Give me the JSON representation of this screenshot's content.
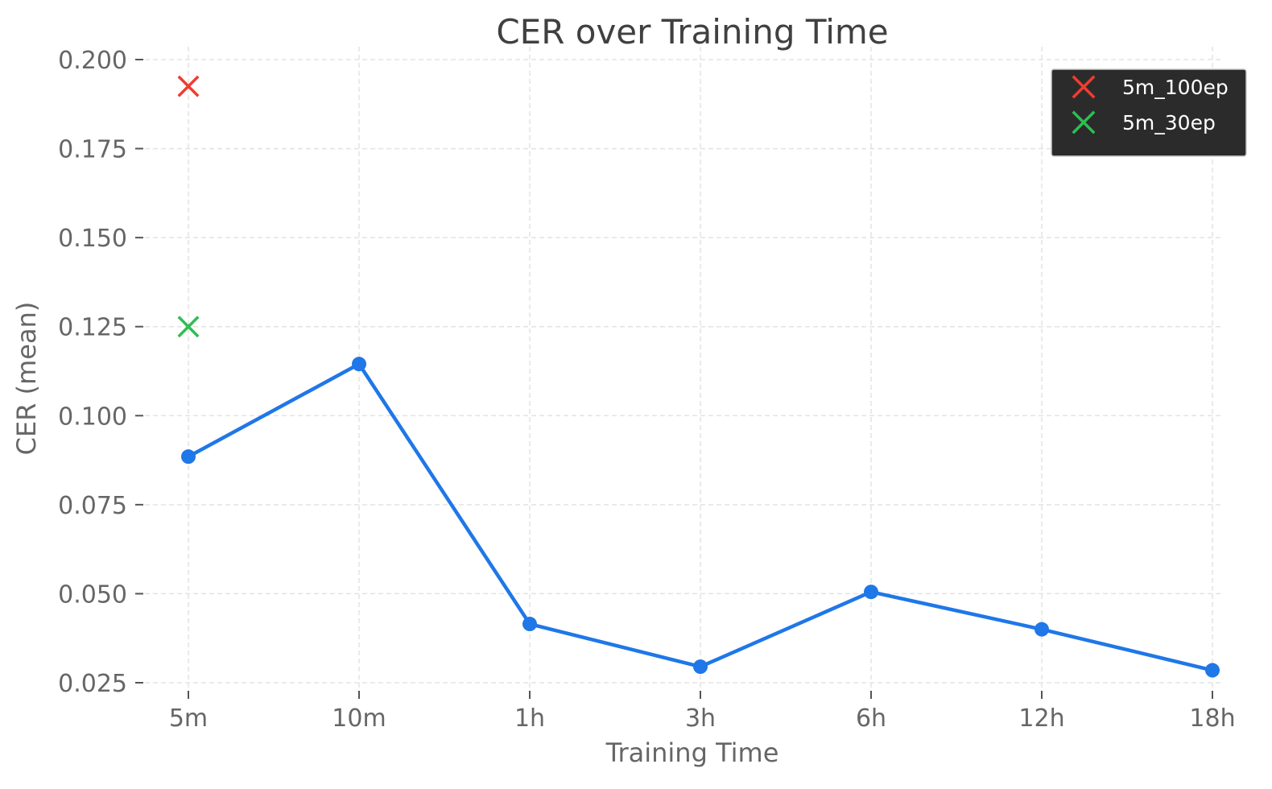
{
  "chart_data": {
    "type": "line",
    "title": "CER over Training Time",
    "xlabel": "Training Time",
    "ylabel": "CER (mean)",
    "categories": [
      "5m",
      "10m",
      "1h",
      "3h",
      "6h",
      "12h",
      "18h"
    ],
    "ylim": [
      0.025,
      0.2
    ],
    "yticks": [
      "0.025",
      "0.050",
      "0.075",
      "0.100",
      "0.125",
      "0.150",
      "0.175",
      "0.200"
    ],
    "grid": true,
    "legend_position": "top-right",
    "series": [
      {
        "kind": "line",
        "color": "#1f77e8",
        "marker": "circle",
        "values": [
          0.0885,
          0.1145,
          0.0415,
          0.0295,
          0.0505,
          0.04,
          0.0285
        ]
      }
    ],
    "extra_points": [
      {
        "name": "5m_100ep",
        "category": "5m",
        "value": 0.1925,
        "marker": "x",
        "color": "#f03c2e"
      },
      {
        "name": "5m_30ep",
        "category": "5m",
        "value": 0.125,
        "marker": "x",
        "color": "#2ebe52"
      }
    ]
  }
}
